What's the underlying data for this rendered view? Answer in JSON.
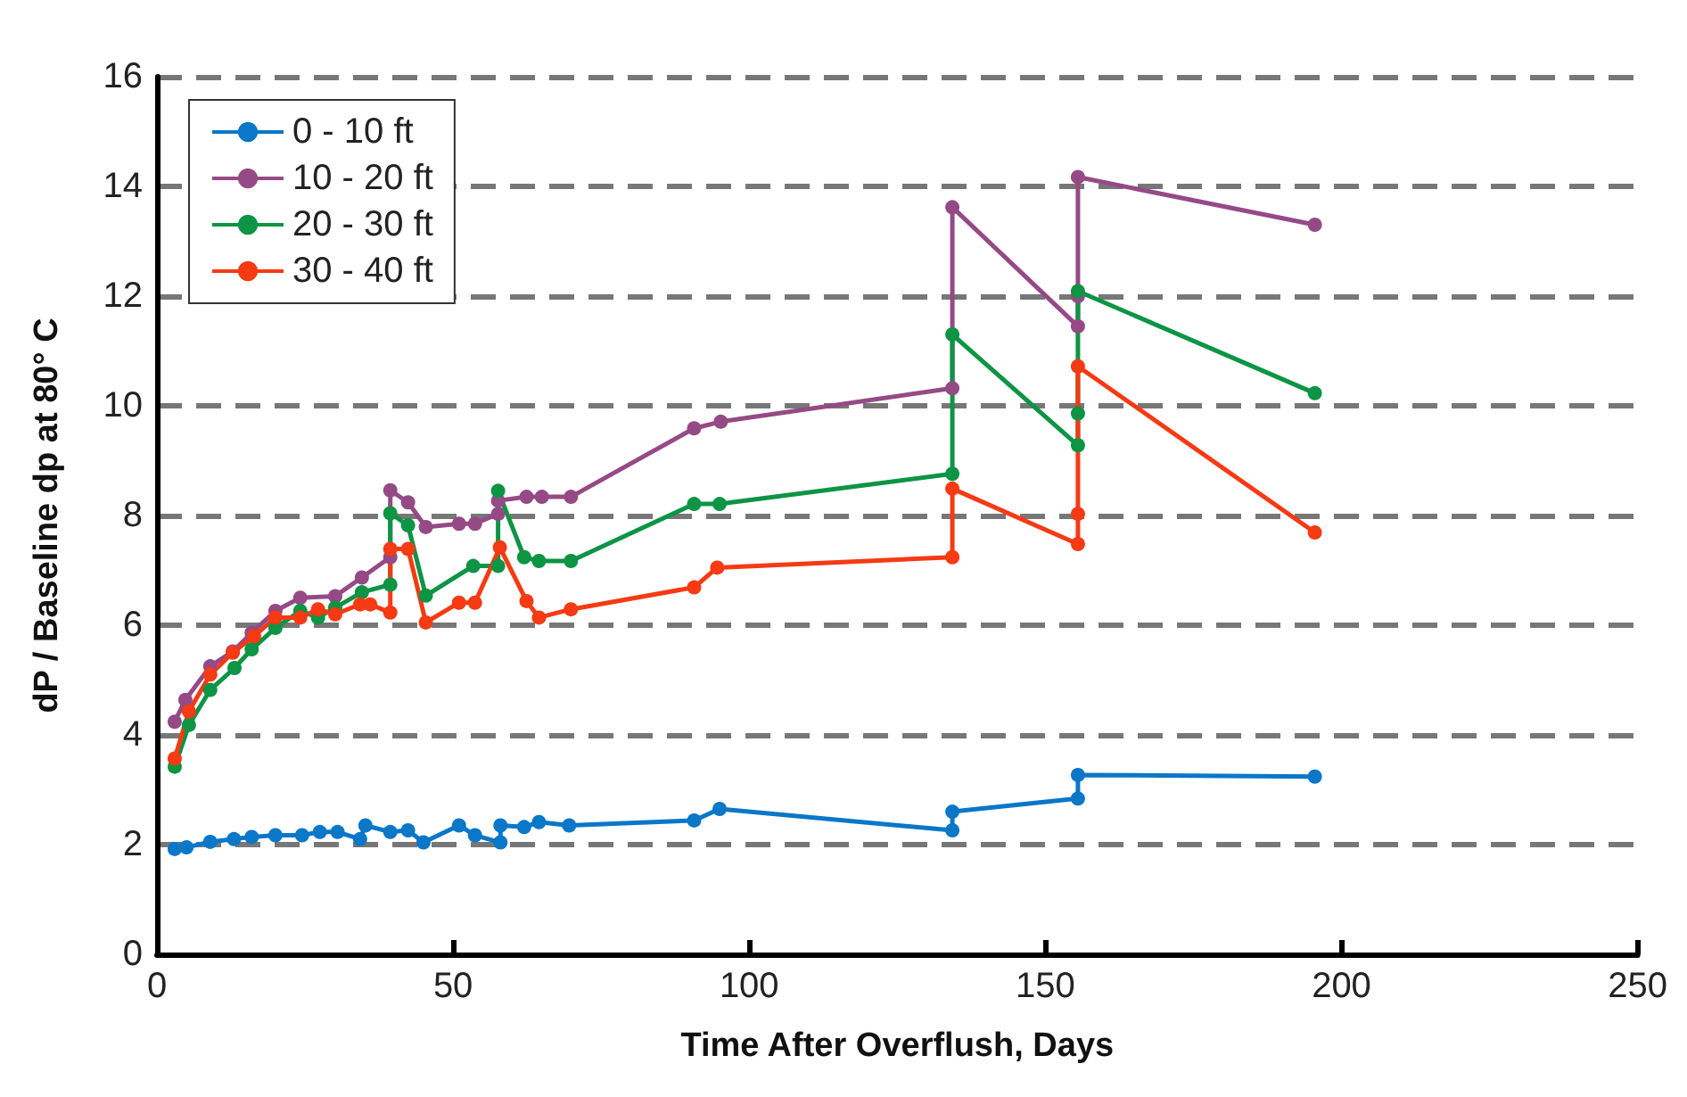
{
  "chart_data": {
    "type": "line",
    "xlabel": "Time After Overflush, Days",
    "ylabel": "dP / Baseline dp at 80° C",
    "xlim": [
      0,
      250
    ],
    "xticks": [
      0,
      50,
      100,
      150,
      200,
      250
    ],
    "ylim": [
      0,
      16
    ],
    "yticks": [
      0,
      2,
      4,
      6,
      8,
      10,
      12,
      14,
      16
    ],
    "grid": "y",
    "legend": "top left",
    "marker": "circle",
    "line_style": "solid",
    "series": [
      {
        "name": "0 - 10 ft",
        "color": "#0a77c8",
        "x": [
          3,
          5,
          9,
          13,
          16,
          20,
          24.5,
          27.5,
          30.5,
          34.3,
          35.2,
          39.4,
          42.4,
          45,
          51,
          53.7,
          58,
          58,
          62,
          64.5,
          69.6,
          90.7,
          95,
          134.3,
          134.3,
          155.5,
          155.5,
          195.5
        ],
        "values": [
          1.92,
          1.95,
          2.05,
          2.1,
          2.14,
          2.17,
          2.17,
          2.23,
          2.23,
          2.1,
          2.35,
          2.23,
          2.26,
          2.04,
          2.35,
          2.17,
          2.04,
          2.35,
          2.32,
          2.41,
          2.35,
          2.44,
          2.65,
          2.26,
          2.6,
          2.84,
          3.27,
          3.24
        ]
      },
      {
        "name": "10 - 20 ft",
        "color": "#954a86",
        "x": [
          3,
          4.8,
          9,
          12.8,
          16,
          20,
          24.2,
          30.1,
          34.6,
          39.4,
          39.4,
          42.4,
          45.4,
          51,
          53.7,
          57.6,
          57.6,
          62.4,
          65,
          69.9,
          90.7,
          95.2,
          134.3,
          134.3,
          155.5,
          155.5,
          155.5,
          195.5
        ],
        "values": [
          4.24,
          4.64,
          5.25,
          5.52,
          5.86,
          6.26,
          6.5,
          6.53,
          6.87,
          7.24,
          8.46,
          8.24,
          7.79,
          7.85,
          7.85,
          8.03,
          8.27,
          8.34,
          8.34,
          8.34,
          9.59,
          9.71,
          10.32,
          13.62,
          11.45,
          12.0,
          14.17,
          13.3
        ]
      },
      {
        "name": "20 - 30 ft",
        "color": "#0d9444",
        "x": [
          3,
          5.4,
          9,
          13.1,
          16,
          20,
          24.2,
          27.2,
          30.1,
          34.6,
          39.4,
          39.4,
          42.4,
          45.4,
          53.4,
          57.6,
          57.6,
          62,
          64.5,
          69.9,
          90.7,
          95,
          134.3,
          134.3,
          155.5,
          155.5,
          155.5,
          195.5
        ],
        "values": [
          3.42,
          4.18,
          4.82,
          5.22,
          5.56,
          5.95,
          6.26,
          6.14,
          6.32,
          6.6,
          6.74,
          8.04,
          7.82,
          6.54,
          7.08,
          7.08,
          8.45,
          7.24,
          7.17,
          7.17,
          8.21,
          8.21,
          8.76,
          11.3,
          9.28,
          9.86,
          12.09,
          10.23
        ]
      },
      {
        "name": "30 - 40 ft",
        "color": "#f53a14",
        "x": [
          3,
          5.4,
          9,
          12.8,
          16.4,
          20,
          24.2,
          27.2,
          30.1,
          34.3,
          36,
          39.4,
          39.4,
          42.4,
          45.4,
          51,
          53.7,
          57.9,
          62.4,
          64.5,
          69.9,
          90.7,
          94.6,
          134.3,
          134.3,
          155.5,
          155.5,
          155.5,
          195.5
        ],
        "values": [
          3.57,
          4.43,
          5.1,
          5.5,
          5.8,
          6.14,
          6.14,
          6.29,
          6.2,
          6.38,
          6.38,
          6.23,
          7.39,
          7.39,
          6.05,
          6.41,
          6.41,
          7.42,
          6.44,
          6.14,
          6.29,
          6.69,
          7.05,
          7.24,
          8.49,
          7.48,
          8.03,
          10.72,
          7.69
        ]
      }
    ]
  }
}
